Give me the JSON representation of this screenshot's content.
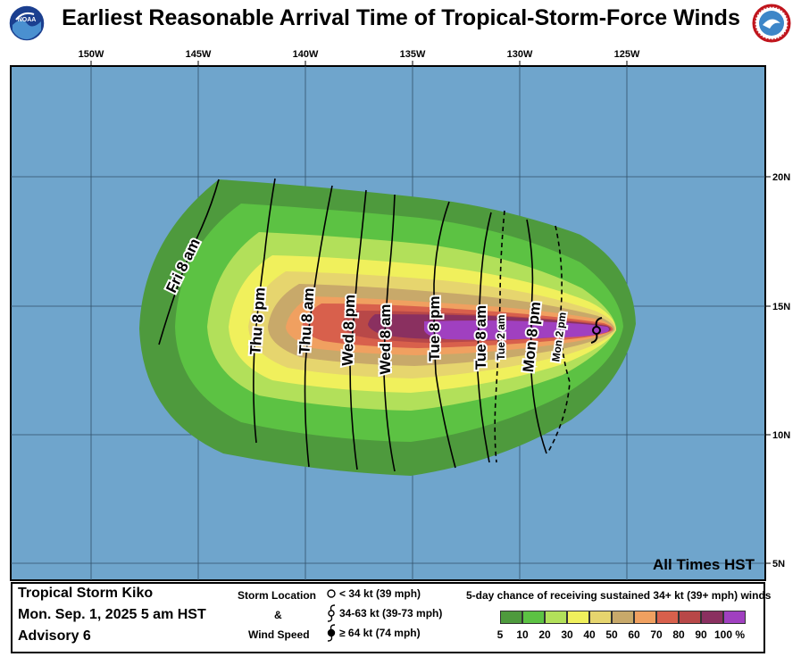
{
  "title": "Earliest Reasonable Arrival Time of Tropical-Storm-Force Winds",
  "logos": {
    "left": "NOAA",
    "right": "NATIONAL WEATHER SERVICE"
  },
  "logo_colors": {
    "noaa_outer": "#1b3f8f",
    "noaa_inner": "#4a90d0",
    "nws_outer": "#c0141c",
    "nws_inner": "#3d86c8"
  },
  "map": {
    "lon_labels": [
      "150W",
      "145W",
      "140W",
      "135W",
      "130W",
      "125W"
    ],
    "lat_labels": [
      "20N",
      "15N",
      "10N",
      "5N"
    ],
    "note": "All Times HST",
    "ocean_color": "#6fa5cc",
    "probability_colors": [
      "#4e9a3d",
      "#5cc243",
      "#b2e05a",
      "#f0f05c",
      "#e6d56e",
      "#c8a96a",
      "#f0a060",
      "#d8604c",
      "#b84848",
      "#8a3060",
      "#a040c0"
    ],
    "isochrone_labels": [
      "Fri  8  am",
      "Thu  8  pm",
      "Thu  8  am",
      "Wed  8  pm",
      "Wed  8  am",
      "Tue  8  pm",
      "Tue  8  am",
      "Tue  2  am",
      "Mon  8  pm",
      "Mon  2  pm"
    ]
  },
  "legend": {
    "storm_name": "Tropical Storm Kiko",
    "datetime": "Mon. Sep. 1, 2025  5 am HST",
    "advisory": "Advisory 6",
    "storm_location_label": "Storm Location",
    "amp": "&",
    "wind_speed_label": "Wind Speed",
    "symbols": [
      {
        "label": "< 34 kt (39 mph)"
      },
      {
        "label": "34-63 kt (39-73 mph)"
      },
      {
        "label": "≥ 64 kt (74 mph)"
      }
    ],
    "prob_title": "5-day chance of receiving sustained 34+ kt (39+ mph) winds",
    "prob_values": [
      "5",
      "10",
      "20",
      "30",
      "40",
      "50",
      "60",
      "70",
      "80",
      "90",
      "100 %"
    ],
    "prob_swatch_colors": [
      "#4e9a3d",
      "#5cc243",
      "#b2e05a",
      "#f0f05c",
      "#e6d56e",
      "#c8a96a",
      "#f0a060",
      "#d8604c",
      "#b84848",
      "#8a3060",
      "#a040c0"
    ]
  }
}
